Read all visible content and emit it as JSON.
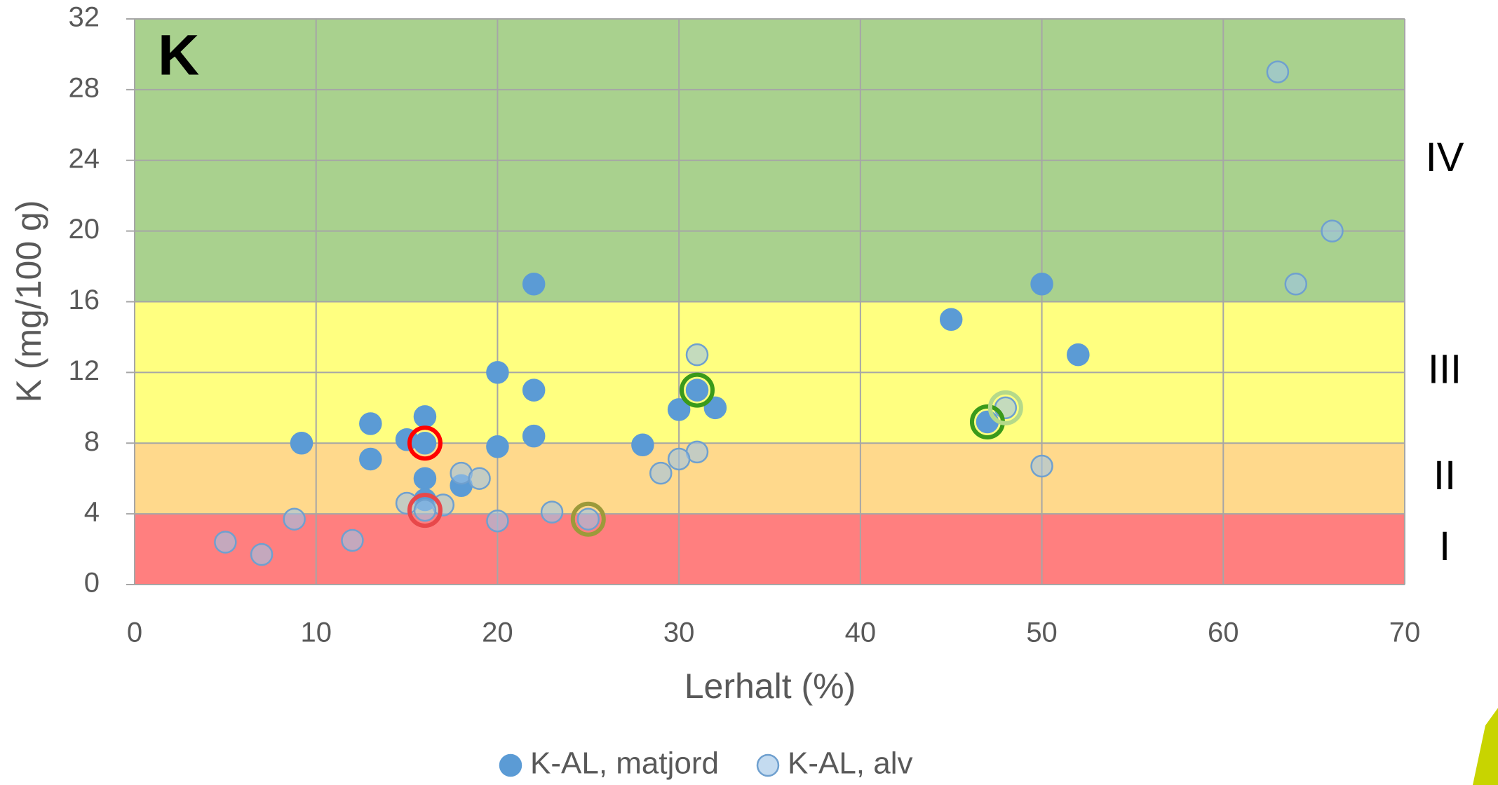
{
  "chart_data": {
    "type": "scatter",
    "panel_label": "K",
    "x_label": "Lerhalt (%)",
    "y_label": "K (mg/100 g)",
    "xlim": [
      0,
      70
    ],
    "ylim": [
      0,
      32
    ],
    "xticks": [
      0,
      10,
      20,
      30,
      40,
      50,
      60,
      70
    ],
    "yticks": [
      0,
      4,
      8,
      12,
      16,
      20,
      24,
      28,
      32
    ],
    "grid": true,
    "legend": "bottom",
    "bands": [
      {
        "from": 0,
        "to": 4,
        "color": "#ff7f7f",
        "label": "I"
      },
      {
        "from": 4,
        "to": 8,
        "color": "#ffd98c",
        "label": "II"
      },
      {
        "from": 8,
        "to": 16,
        "color": "#ffff80",
        "label": "III"
      },
      {
        "from": 16,
        "to": 32,
        "color": "#a9d18e",
        "label": "IV"
      }
    ],
    "series": [
      {
        "name": "K-AL, matjord",
        "color": "#5b9bd5",
        "x": [
          22,
          50,
          45,
          52,
          20,
          22,
          31,
          30,
          32,
          16,
          13,
          9.2,
          15,
          16,
          20,
          22,
          28,
          13,
          47,
          16,
          18,
          16
        ],
        "values": [
          17,
          17,
          15,
          13,
          12,
          11,
          11,
          9.9,
          10,
          9.5,
          9.1,
          8,
          8.2,
          8,
          7.8,
          8.4,
          7.9,
          7.1,
          9.2,
          6,
          5.6,
          4.8
        ]
      },
      {
        "name": "K-AL, alv",
        "color": "#9dc3e6",
        "x": [
          63,
          66,
          64,
          31,
          48,
          31,
          30,
          29,
          50,
          18,
          19,
          15,
          17,
          23,
          25,
          20,
          8.8,
          5,
          7,
          12,
          16
        ],
        "values": [
          29,
          20,
          17,
          13,
          10,
          7.5,
          7.1,
          6.3,
          6.7,
          6.3,
          6,
          4.6,
          4.5,
          4.1,
          3.7,
          3.6,
          3.7,
          2.4,
          1.7,
          2.5,
          4.2
        ]
      }
    ],
    "highlights": [
      {
        "x": 16,
        "y": 8,
        "color": "#ff0000"
      },
      {
        "x": 16,
        "y": 4.2,
        "color": "#e8484a"
      },
      {
        "x": 25,
        "y": 3.7,
        "color": "#9c9a3a"
      },
      {
        "x": 31,
        "y": 11,
        "color": "#3a9a1a"
      },
      {
        "x": 47,
        "y": 9.2,
        "color": "#3a9a1a"
      },
      {
        "x": 48,
        "y": 10,
        "color": "#b5d98a"
      }
    ]
  }
}
